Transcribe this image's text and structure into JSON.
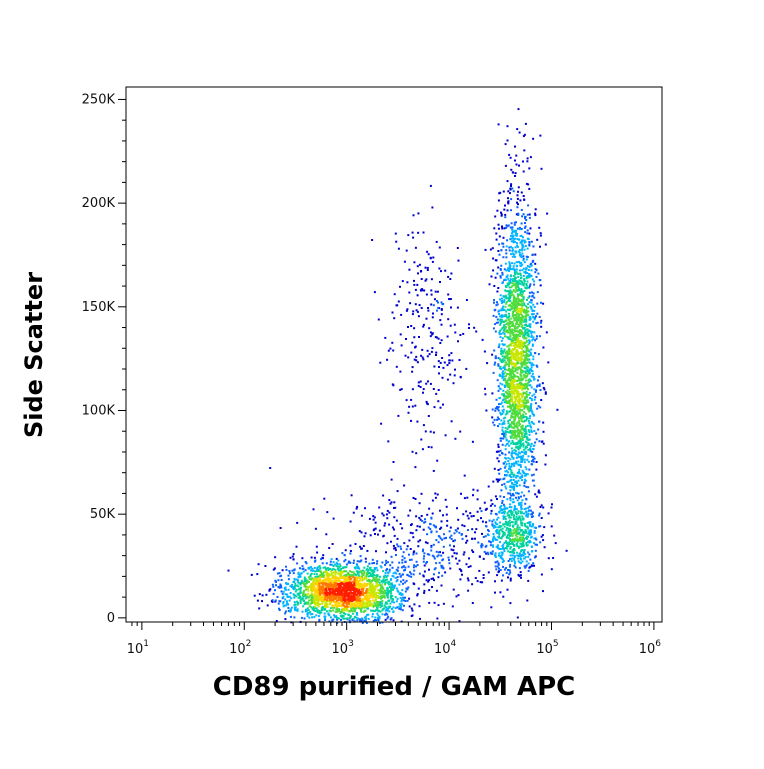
{
  "chart_data": {
    "type": "scatter",
    "subtype": "density-dot-plot",
    "xlabel": "CD89 purified / GAM APC",
    "ylabel": "Side Scatter",
    "x_scale": "log",
    "xlim": [
      7,
      1200000
    ],
    "ylim": [
      -2000,
      256000
    ],
    "x_ticks": [
      {
        "value": 10,
        "base": "10",
        "exp": "1"
      },
      {
        "value": 100,
        "base": "10",
        "exp": "2"
      },
      {
        "value": 1000,
        "base": "10",
        "exp": "3"
      },
      {
        "value": 10000,
        "base": "10",
        "exp": "4"
      },
      {
        "value": 100000,
        "base": "10",
        "exp": "5"
      },
      {
        "value": 1000000,
        "base": "10",
        "exp": "6"
      }
    ],
    "y_ticks": [
      {
        "value": 0,
        "label": "0"
      },
      {
        "value": 50000,
        "label": "50K"
      },
      {
        "value": 100000,
        "label": "100K"
      },
      {
        "value": 150000,
        "label": "150K"
      },
      {
        "value": 200000,
        "label": "200K"
      },
      {
        "value": 250000,
        "label": "250K"
      }
    ],
    "density_colors": [
      "#0000cc",
      "#0a60ff",
      "#00b4ff",
      "#00d2a0",
      "#50dc3c",
      "#c8e600",
      "#ffd200",
      "#ff7800",
      "#ff1e00"
    ],
    "populations": [
      {
        "name": "",
        "center_x": 900,
        "center_y": 13000,
        "spread_log_x": 0.28,
        "spread_y": 7000,
        "count": 2200
      },
      {
        "name": "",
        "center_x": 45000,
        "center_y": 125000,
        "spread_log_x": 0.1,
        "spread_y": 38000,
        "count": 2400
      },
      {
        "name": "",
        "center_x": 40000,
        "center_y": 40000,
        "spread_log_x": 0.14,
        "spread_y": 9000,
        "count": 500
      },
      {
        "name": "",
        "center_x": 6000,
        "center_y": 140000,
        "spread_log_x": 0.2,
        "spread_y": 30000,
        "count": 260
      },
      {
        "name": "",
        "center_x": 6000,
        "center_y": 35000,
        "spread_log_x": 0.5,
        "spread_y": 14000,
        "count": 450
      }
    ],
    "grid": false,
    "legend": "none"
  }
}
